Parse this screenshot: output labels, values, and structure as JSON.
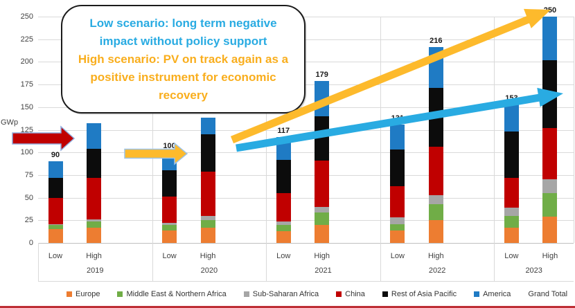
{
  "callout": {
    "low_line1": "Low scenario: long term negative",
    "low_line2": "impact without policy support",
    "high_line1": "High scenario: PV on track again as a",
    "high_line2": "positive instrument for economic",
    "high_line3": "recovery",
    "low_color": "#29ABE2",
    "high_color": "#F9AE1D"
  },
  "chart_data": {
    "type": "bar",
    "stacked": true,
    "ylabel": "GWp",
    "ylim": [
      0,
      250
    ],
    "yticks": [
      0,
      25,
      50,
      75,
      100,
      125,
      150,
      175,
      200,
      225,
      250
    ],
    "years": [
      "2019",
      "2020",
      "2021",
      "2022",
      "2023"
    ],
    "scenarios": [
      "Low",
      "High"
    ],
    "bar_order": [
      "2019 Low",
      "2019 High",
      "2020 Low",
      "2020 High",
      "2021 Low",
      "2021 High",
      "2022 Low",
      "2022 High",
      "2023 Low",
      "2023 High"
    ],
    "series": [
      {
        "name": "Europe",
        "color": "#ED7D31",
        "values": [
          15,
          17,
          14,
          17,
          13,
          20,
          14,
          25,
          17,
          29
        ]
      },
      {
        "name": "Middle East & Northern Africa",
        "color": "#70AD47",
        "values": [
          5,
          7,
          6,
          8,
          7,
          14,
          7,
          18,
          13,
          26
        ]
      },
      {
        "name": "Sub-Saharan Africa",
        "color": "#A6A6A6",
        "values": [
          1,
          2,
          2,
          5,
          4,
          6,
          7,
          10,
          9,
          15
        ]
      },
      {
        "name": "China",
        "color": "#C00000",
        "values": [
          29,
          46,
          29,
          49,
          31,
          51,
          35,
          53,
          33,
          57
        ]
      },
      {
        "name": "Rest of Asia Pacific",
        "color": "#0C0C0C",
        "values": [
          22,
          32,
          29,
          41,
          37,
          49,
          40,
          65,
          51,
          75
        ]
      },
      {
        "name": "America",
        "color": "#1F7BC4",
        "values": [
          18,
          28,
          20,
          18,
          25,
          39,
          28,
          45,
          30,
          48
        ]
      }
    ],
    "grand_total_labels": [
      "90",
      "",
      "100",
      "",
      "117",
      "179",
      "131",
      "216",
      "153",
      "250"
    ],
    "grid": true,
    "legend_position": "bottom"
  },
  "legend": {
    "items": [
      {
        "label": "Europe",
        "color": "#ED7D31"
      },
      {
        "label": "Middle East & Northern Africa",
        "color": "#70AD47"
      },
      {
        "label": "Sub-Saharan Africa",
        "color": "#A6A6A6"
      },
      {
        "label": "China",
        "color": "#C00000"
      },
      {
        "label": "Rest of Asia Pacific",
        "color": "#0C0C0C"
      },
      {
        "label": "America",
        "color": "#1F7BC4"
      },
      {
        "label": "Grand Total",
        "color": null
      }
    ]
  },
  "annotations": {
    "red_block_arrow": {
      "name": "historic-marker-arrow",
      "color": "#C00000",
      "outline": "#8FAADC"
    },
    "yellow_block_arrow": {
      "name": "2020-marker-arrow",
      "color": "#FDBA2C",
      "outline": "#9DC3E6"
    },
    "high_trend_arrow": {
      "name": "high-scenario-trend",
      "color": "#FDBA2C"
    },
    "low_trend_arrow": {
      "name": "low-scenario-trend",
      "color": "#29ABE2"
    },
    "footer_line_color": "#BE2E35"
  }
}
